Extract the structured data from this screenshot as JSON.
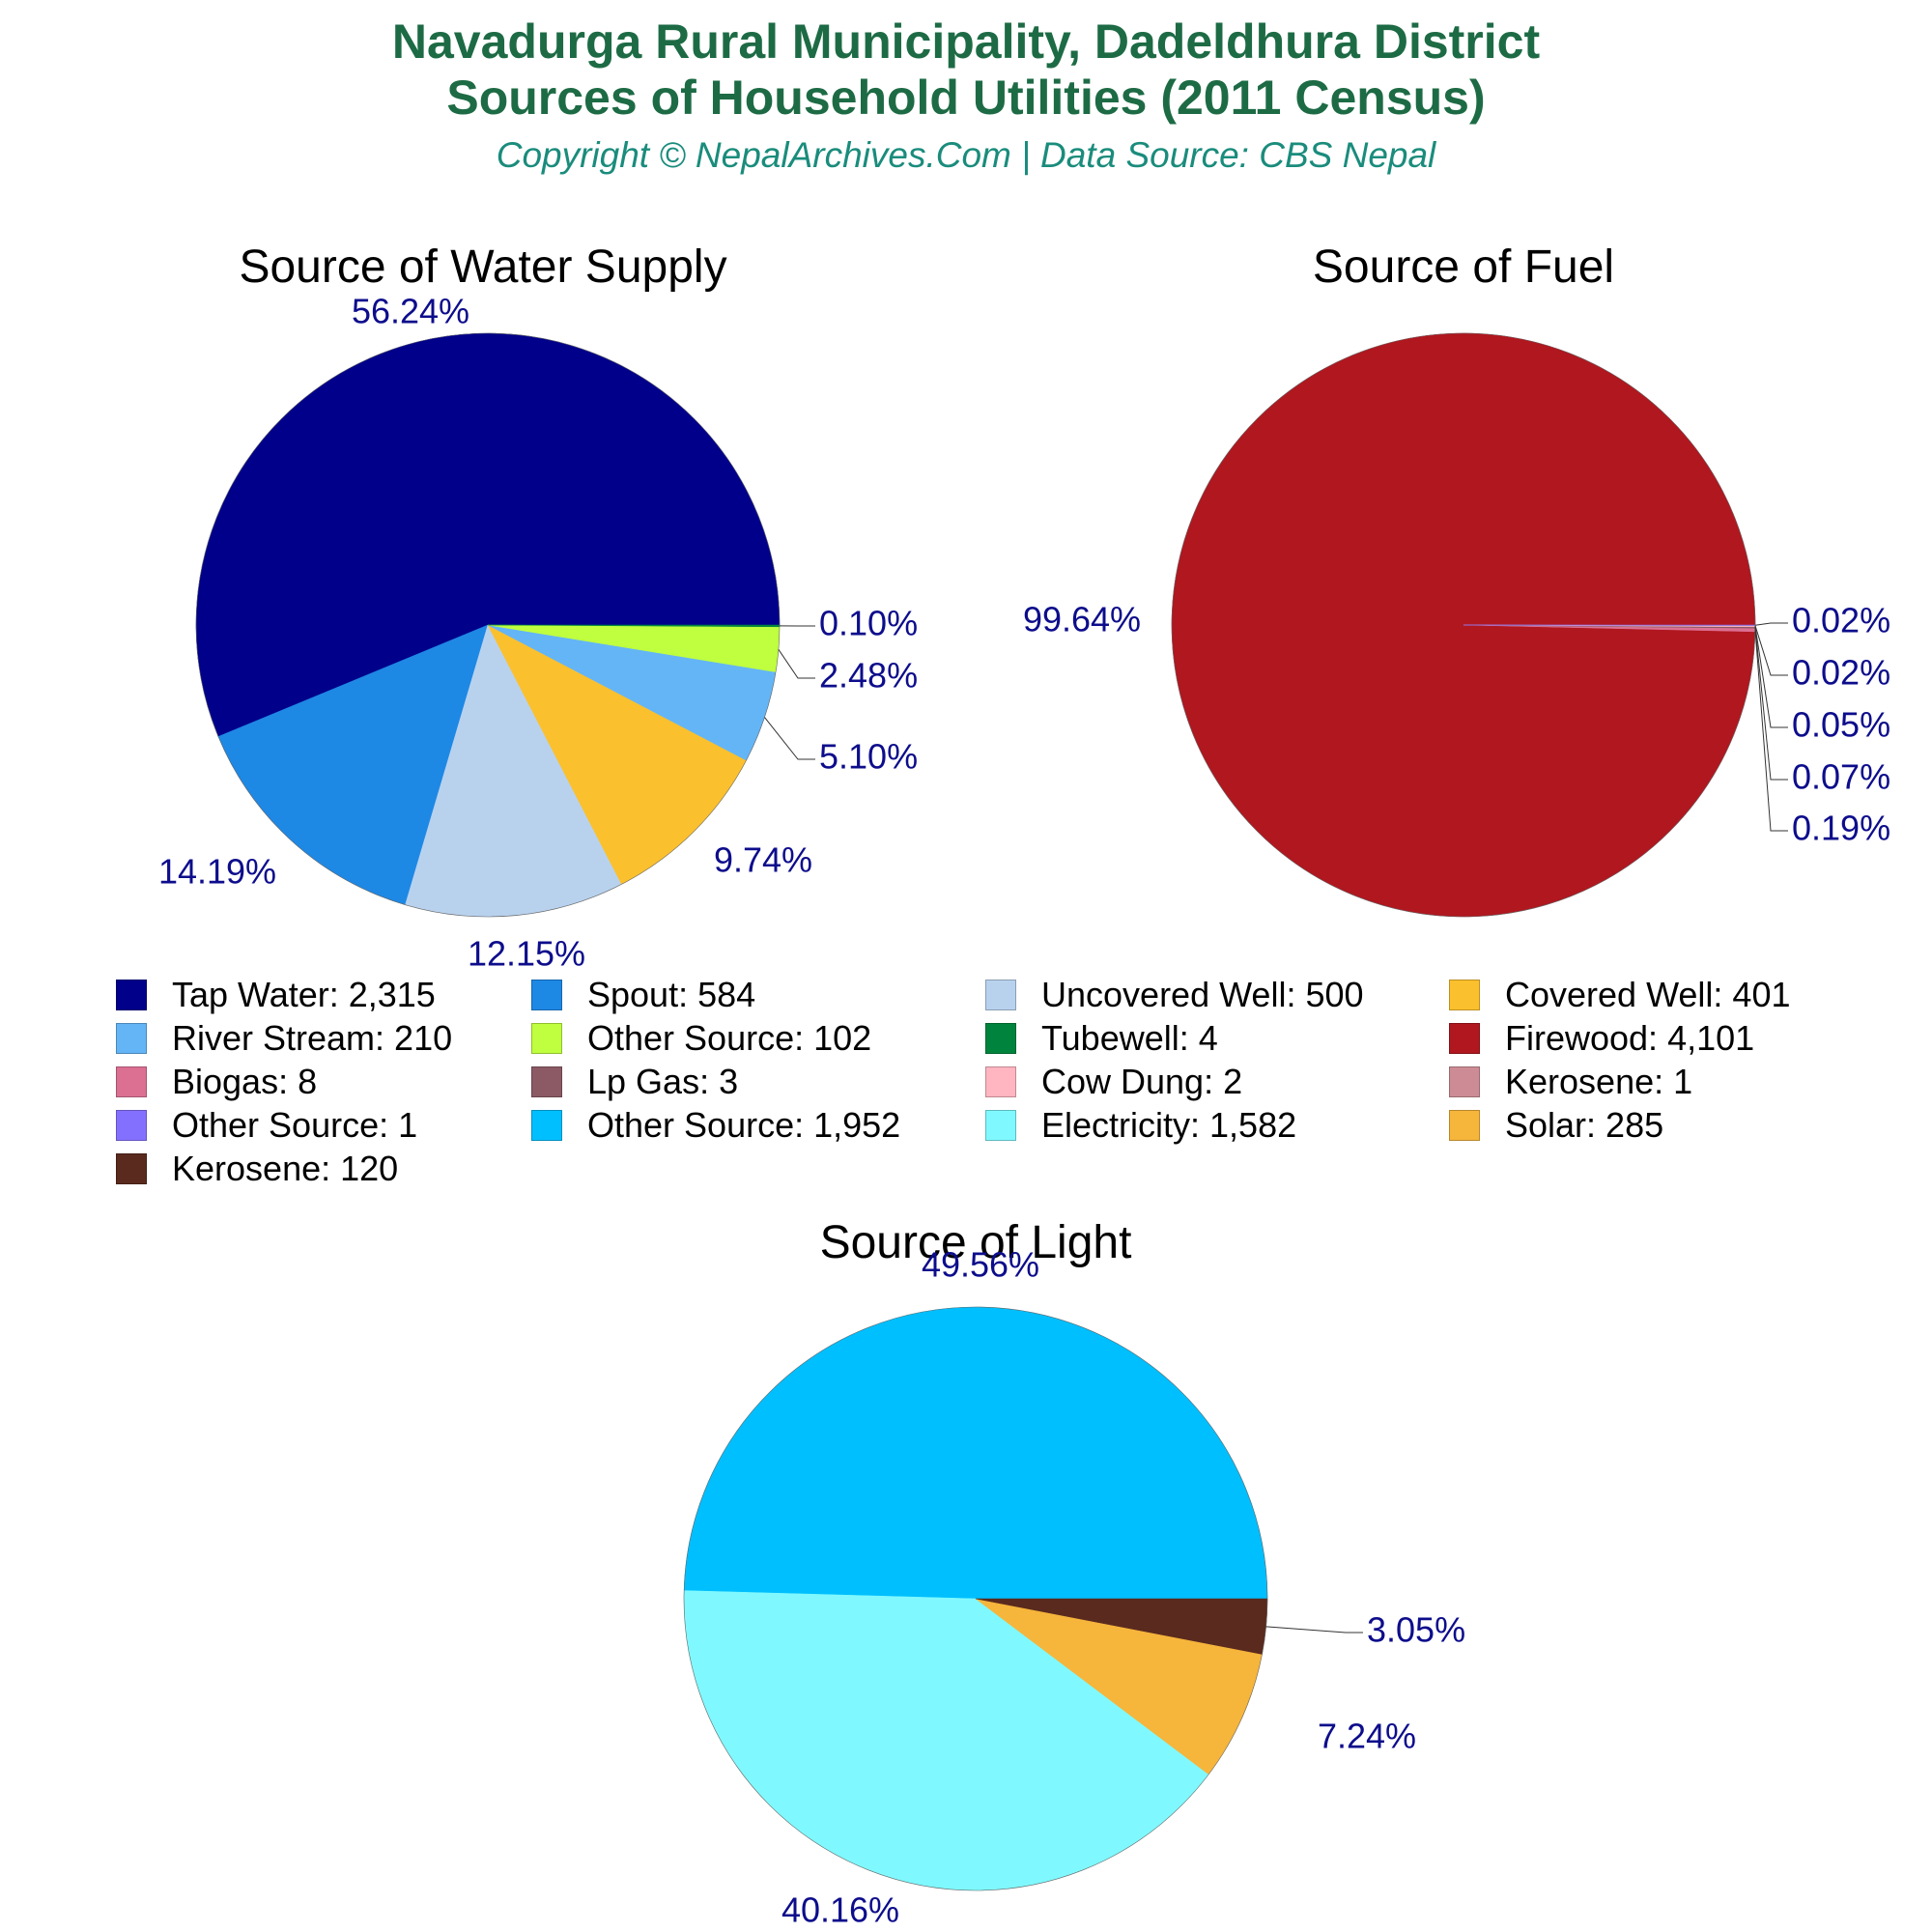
{
  "header": {
    "title_line1": "Navadurga Rural Municipality, Dadeldhura District",
    "title_line2": "Sources of Household Utilities (2011 Census)",
    "subtitle": "Copyright © NepalArchives.Com | Data Source: CBS Nepal"
  },
  "chart_data": [
    {
      "type": "pie",
      "title": "Source of Water Supply",
      "slices": [
        {
          "label": "Tap Water",
          "value": 2315,
          "percent_label": "56.24%",
          "color": "#00008b"
        },
        {
          "label": "Spout",
          "value": 584,
          "percent_label": "14.19%",
          "color": "#1e88e5"
        },
        {
          "label": "Uncovered Well",
          "value": 500,
          "percent_label": "12.15%",
          "color": "#b8d2ee"
        },
        {
          "label": "Covered Well",
          "value": 401,
          "percent_label": "9.74%",
          "color": "#fbc02d"
        },
        {
          "label": "River Stream",
          "value": 210,
          "percent_label": "5.10%",
          "color": "#64b5f6"
        },
        {
          "label": "Other Source",
          "value": 102,
          "percent_label": "2.48%",
          "color": "#bfff3f"
        },
        {
          "label": "Tubewell",
          "value": 4,
          "percent_label": "0.10%",
          "color": "#00843d"
        }
      ]
    },
    {
      "type": "pie",
      "title": "Source of Fuel",
      "slices": [
        {
          "label": "Firewood",
          "value": 4101,
          "percent_label": "99.64%",
          "color": "#b0171f"
        },
        {
          "label": "Biogas",
          "value": 8,
          "percent_label": "0.19%",
          "color": "#db7093"
        },
        {
          "label": "Lp Gas",
          "value": 3,
          "percent_label": "0.07%",
          "color": "#8b5a64"
        },
        {
          "label": "Cow Dung",
          "value": 2,
          "percent_label": "0.05%",
          "color": "#ffb6c1"
        },
        {
          "label": "Kerosene",
          "value": 1,
          "percent_label": "0.02%",
          "color": "#cd8c95"
        },
        {
          "label": "Other Source",
          "value": 1,
          "percent_label": "0.02%",
          "color": "#8470ff"
        }
      ]
    },
    {
      "type": "pie",
      "title": "Source of Light",
      "slices": [
        {
          "label": "Other Source",
          "value": 1952,
          "percent_label": "49.56%",
          "color": "#00bfff"
        },
        {
          "label": "Electricity",
          "value": 1582,
          "percent_label": "40.16%",
          "color": "#7ff9ff"
        },
        {
          "label": "Solar",
          "value": 285,
          "percent_label": "7.24%",
          "color": "#f6b53b"
        },
        {
          "label": "Kerosene",
          "value": 120,
          "percent_label": "3.05%",
          "color": "#5a2a1e"
        }
      ]
    }
  ],
  "legend": [
    {
      "text": "Tap Water: 2,315",
      "color": "#00008b"
    },
    {
      "text": "Spout: 584",
      "color": "#1e88e5"
    },
    {
      "text": "Uncovered Well: 500",
      "color": "#b8d2ee"
    },
    {
      "text": "Covered Well: 401",
      "color": "#fbc02d"
    },
    {
      "text": "River Stream: 210",
      "color": "#64b5f6"
    },
    {
      "text": "Other Source: 102",
      "color": "#bfff3f"
    },
    {
      "text": "Tubewell: 4",
      "color": "#00843d"
    },
    {
      "text": "Firewood: 4,101",
      "color": "#b0171f"
    },
    {
      "text": "Biogas: 8",
      "color": "#db7093"
    },
    {
      "text": "Lp Gas: 3",
      "color": "#8b5a64"
    },
    {
      "text": "Cow Dung: 2",
      "color": "#ffb6c1"
    },
    {
      "text": "Kerosene: 1",
      "color": "#cd8c95"
    },
    {
      "text": "Other Source: 1",
      "color": "#8470ff"
    },
    {
      "text": "Other Source: 1,952",
      "color": "#00bfff"
    },
    {
      "text": "Electricity: 1,582",
      "color": "#7ff9ff"
    },
    {
      "text": "Solar: 285",
      "color": "#f6b53b"
    },
    {
      "text": "Kerosene: 120",
      "color": "#5a2a1e"
    }
  ],
  "label_color": "#0d0d8c"
}
